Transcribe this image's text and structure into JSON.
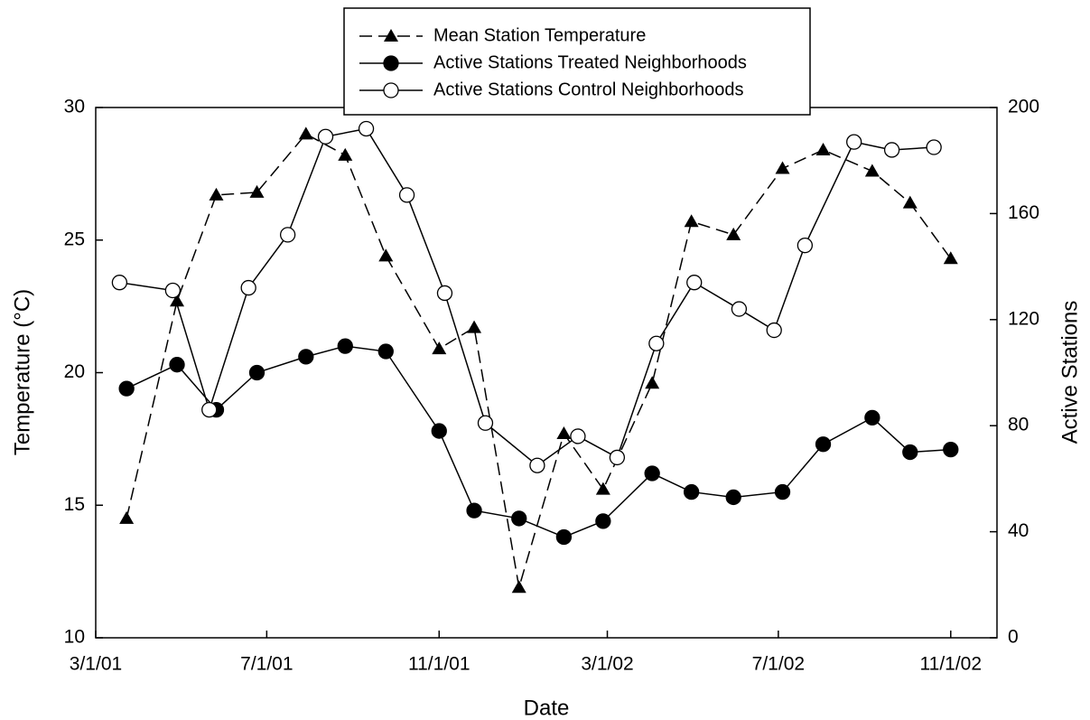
{
  "chart_data": {
    "type": "line",
    "x_label": "Date",
    "y_label": "Temperature (°C)",
    "y2_label": "Active Stations",
    "xlim": [
      "2001-03-01",
      "2002-12-04"
    ],
    "xticks": [
      {
        "value": "2001-03-01",
        "label": "3/1/01"
      },
      {
        "value": "2001-07-01",
        "label": "7/1/01"
      },
      {
        "value": "2001-11-01",
        "label": "11/1/01"
      },
      {
        "value": "2002-03-01",
        "label": "3/1/02"
      },
      {
        "value": "2002-07-01",
        "label": "7/1/02"
      },
      {
        "value": "2002-11-01",
        "label": "11/1/02"
      }
    ],
    "ylim": [
      10,
      30
    ],
    "yticks": [
      10,
      15,
      20,
      25,
      30
    ],
    "y2lim": [
      0,
      200
    ],
    "y2ticks": [
      0,
      40,
      80,
      120,
      160,
      200
    ],
    "series": [
      {
        "name": "Mean Station Temperature",
        "color": "#000000",
        "marker": "triangle",
        "dashed": true,
        "x": [
          "2001-03-23",
          "2001-04-28",
          "2001-05-26",
          "2001-06-24",
          "2001-07-29",
          "2001-08-26",
          "2001-09-24",
          "2001-11-01",
          "2001-11-26",
          "2001-12-28",
          "2002-01-29",
          "2002-02-26",
          "2002-04-02",
          "2002-04-30",
          "2002-05-30",
          "2002-07-04",
          "2002-08-02",
          "2002-09-06",
          "2002-10-03",
          "2002-11-01"
        ],
        "values": [
          14.5,
          22.7,
          26.7,
          26.8,
          29.0,
          28.2,
          24.4,
          20.9,
          21.7,
          11.9,
          17.7,
          15.6,
          19.6,
          25.7,
          25.2,
          27.7,
          28.4,
          27.6,
          26.4,
          24.3
        ]
      },
      {
        "name": "Active Stations Treated Neighborhoods",
        "color": "#000000",
        "marker": "filled-circle",
        "dashed": false,
        "axis": "y2",
        "x": [
          "2001-03-23",
          "2001-04-28",
          "2001-05-26",
          "2001-06-24",
          "2001-07-29",
          "2001-08-26",
          "2001-09-24",
          "2001-11-01",
          "2001-11-26",
          "2001-12-28",
          "2002-01-29",
          "2002-02-26",
          "2002-04-02",
          "2002-04-30",
          "2002-05-30",
          "2002-07-04",
          "2002-08-02",
          "2002-09-06",
          "2002-10-03",
          "2002-11-01"
        ],
        "values": [
          94,
          103,
          86,
          100,
          106,
          110,
          108,
          78,
          48,
          45,
          38,
          44,
          62,
          55,
          53,
          55,
          73,
          83,
          70,
          71
        ]
      },
      {
        "name": "Active Stations Control Neighborhoods",
        "color": "#000000",
        "marker": "open-circle",
        "dashed": false,
        "axis": "y2",
        "x": [
          "2001-03-18",
          "2001-04-25",
          "2001-05-21",
          "2001-06-18",
          "2001-07-16",
          "2001-08-12",
          "2001-09-10",
          "2001-10-09",
          "2001-11-05",
          "2001-12-04",
          "2002-01-10",
          "2002-02-08",
          "2002-03-08",
          "2002-04-05",
          "2002-05-02",
          "2002-06-03",
          "2002-06-28",
          "2002-07-20",
          "2002-08-24",
          "2002-09-20",
          "2002-10-20"
        ],
        "values": [
          134,
          131,
          86,
          132,
          152,
          189,
          192,
          167,
          130,
          81,
          65,
          76,
          68,
          111,
          134,
          124,
          116,
          148,
          187,
          184,
          185
        ]
      }
    ]
  }
}
